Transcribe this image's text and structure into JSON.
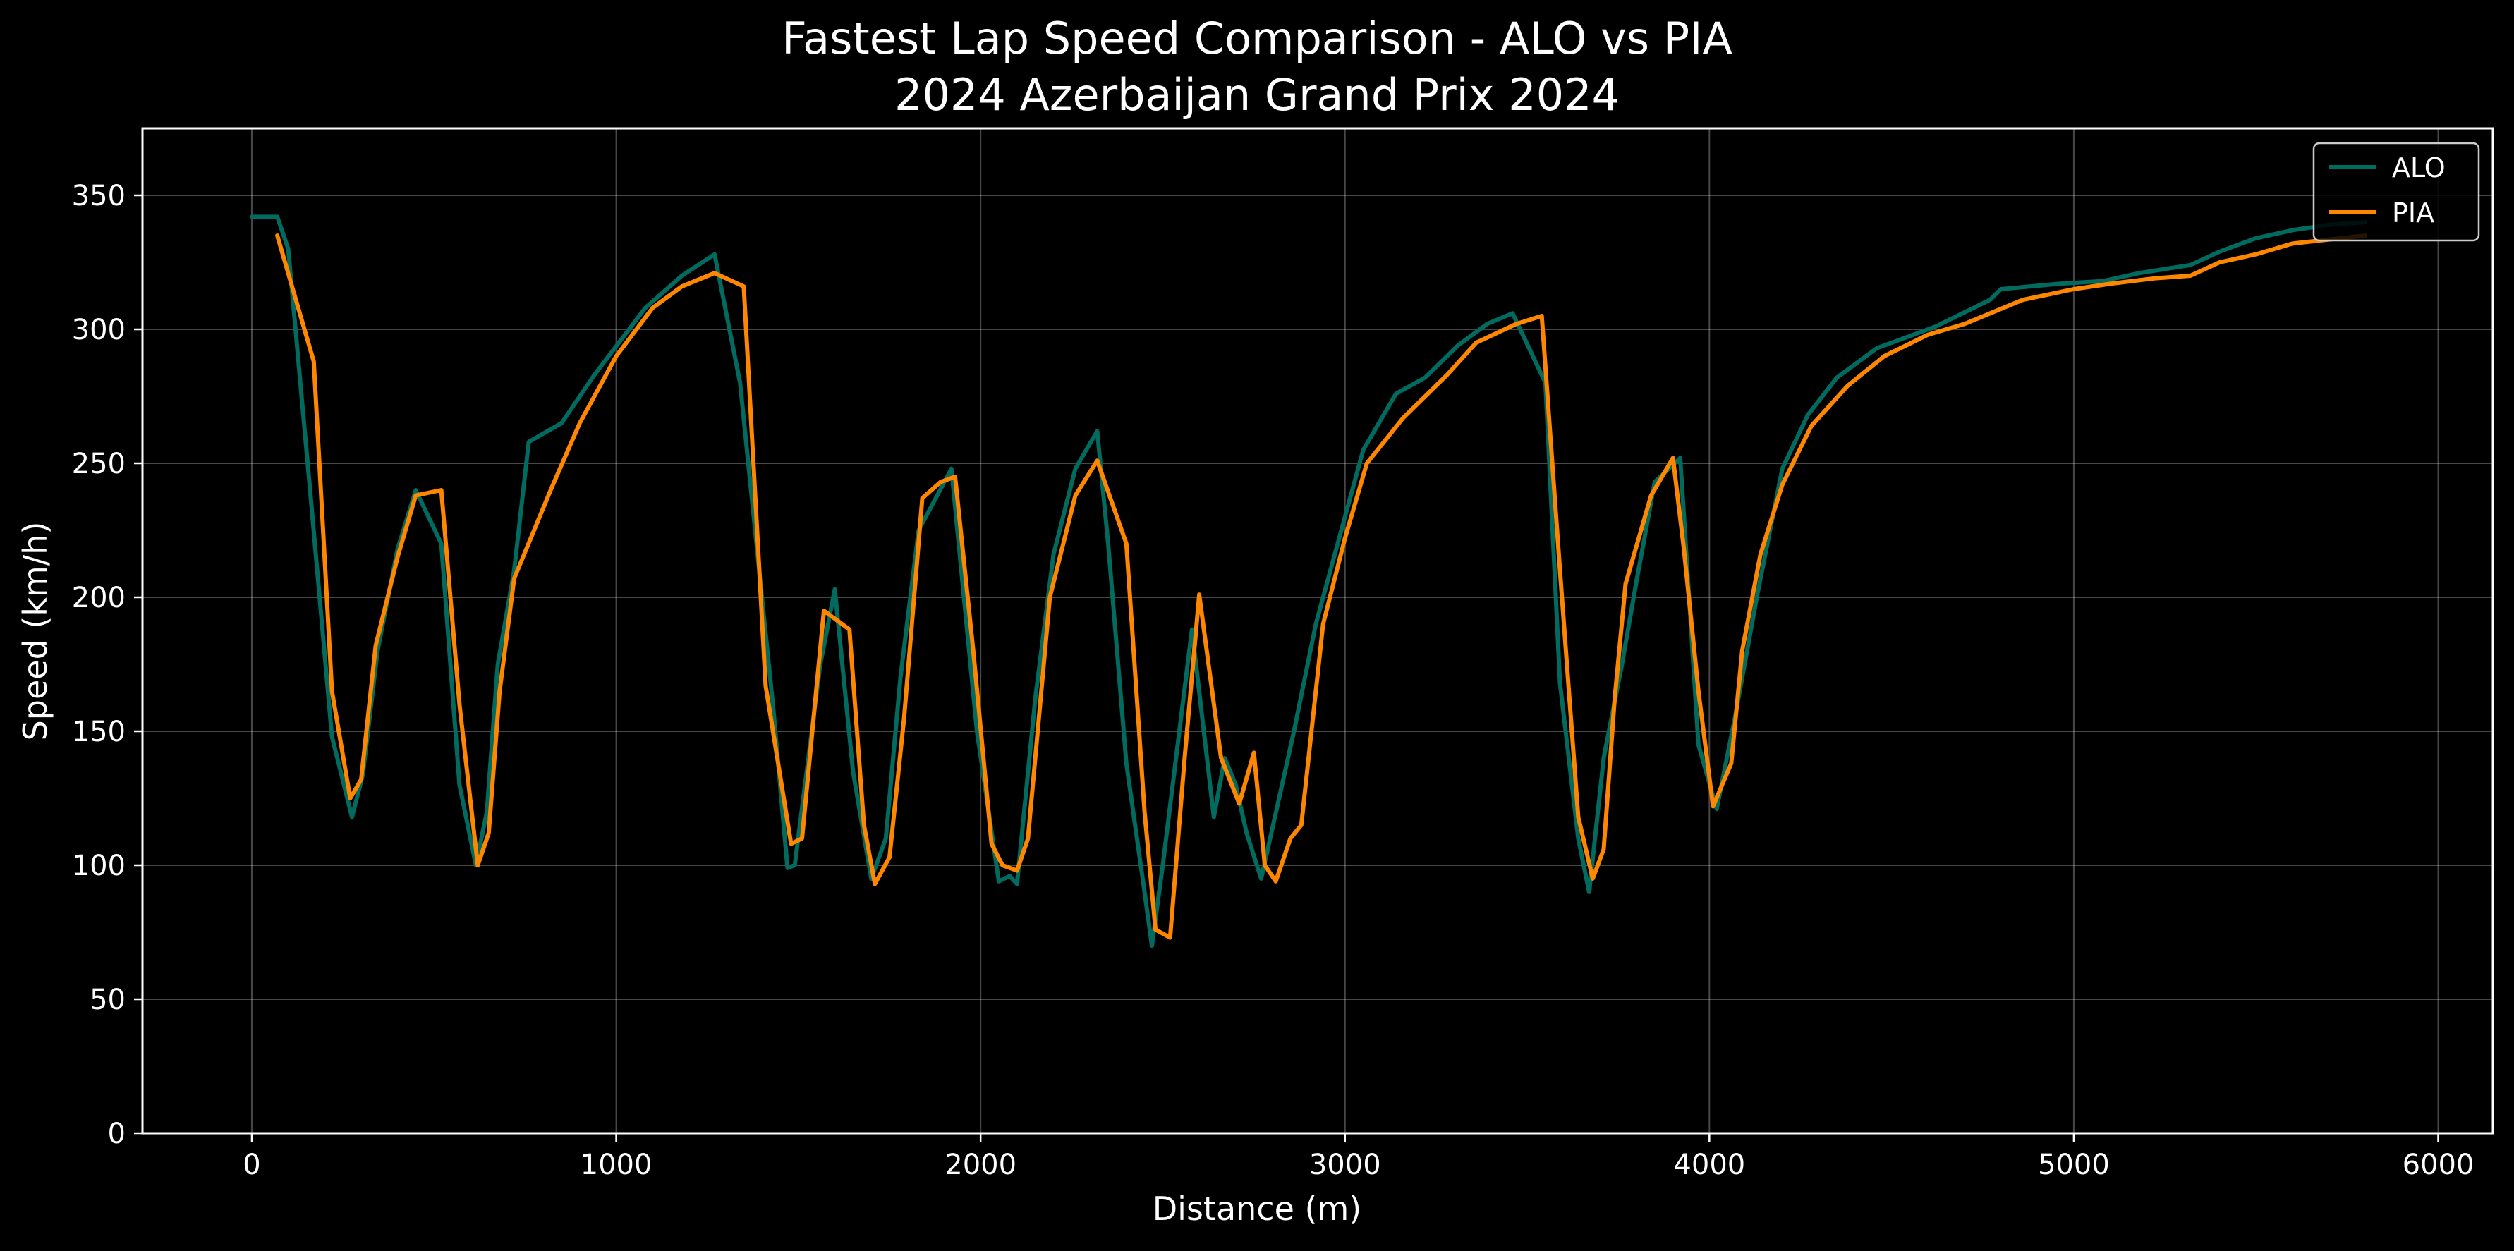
{
  "chart_data": {
    "type": "line",
    "title": "Fastest Lap Speed Comparison - ALO vs PIA",
    "subtitle": "2024 Azerbaijan Grand Prix 2024",
    "xlabel": "Distance (m)",
    "ylabel": "Speed (km/h)",
    "xlim": [
      -300,
      6150
    ],
    "ylim": [
      0,
      375
    ],
    "xticks": [
      0,
      1000,
      2000,
      3000,
      4000,
      5000,
      6000
    ],
    "yticks": [
      0,
      50,
      100,
      150,
      200,
      250,
      300,
      350
    ],
    "grid": true,
    "legend": "top-right",
    "background": "#000000",
    "series": [
      {
        "name": "ALO",
        "color": "#006b5e",
        "x": [
          0,
          70,
          100,
          160,
          220,
          275,
          305,
          345,
          400,
          450,
          520,
          570,
          615,
          645,
          675,
          720,
          760,
          850,
          940,
          1080,
          1180,
          1270,
          1340,
          1430,
          1470,
          1490,
          1560,
          1600,
          1650,
          1700,
          1740,
          1780,
          1830,
          1920,
          1990,
          2050,
          2080,
          2100,
          2150,
          2200,
          2260,
          2320,
          2350,
          2400,
          2450,
          2470,
          2500,
          2580,
          2640,
          2670,
          2700,
          2730,
          2770,
          2860,
          2920,
          3000,
          3050,
          3140,
          3220,
          3310,
          3390,
          3460,
          3550,
          3590,
          3640,
          3670,
          3710,
          3760,
          3800,
          3850,
          3920,
          3970,
          4020,
          4070,
          4130,
          4200,
          4270,
          4350,
          4460,
          4620,
          4770,
          4800,
          4960,
          5080,
          5180,
          5320,
          5400,
          5500,
          5600,
          5700,
          5800
        ],
        "values": [
          342,
          342,
          330,
          240,
          148,
          118,
          134,
          180,
          218,
          240,
          220,
          130,
          100,
          120,
          175,
          210,
          258,
          265,
          283,
          308,
          320,
          328,
          280,
          160,
          99,
          100,
          175,
          203,
          135,
          95,
          110,
          170,
          225,
          248,
          150,
          94,
          96,
          93,
          162,
          216,
          248,
          262,
          220,
          138,
          90,
          70,
          100,
          188,
          118,
          140,
          130,
          112,
          95,
          150,
          190,
          230,
          255,
          276,
          282,
          294,
          302,
          306,
          280,
          168,
          110,
          90,
          140,
          175,
          206,
          243,
          252,
          145,
          121,
          155,
          200,
          248,
          268,
          282,
          293,
          301,
          311,
          315,
          317,
          318,
          321,
          324,
          329,
          334,
          337,
          339,
          340
        ]
      },
      {
        "name": "PIA",
        "color": "#ff8700",
        "x": [
          70,
          170,
          220,
          270,
          300,
          340,
          400,
          450,
          520,
          570,
          620,
          650,
          680,
          720,
          820,
          900,
          1000,
          1100,
          1180,
          1270,
          1350,
          1410,
          1480,
          1510,
          1570,
          1640,
          1680,
          1710,
          1750,
          1790,
          1840,
          1890,
          1930,
          1980,
          2030,
          2060,
          2100,
          2130,
          2190,
          2260,
          2320,
          2400,
          2450,
          2480,
          2520,
          2560,
          2600,
          2660,
          2710,
          2750,
          2780,
          2810,
          2850,
          2880,
          2940,
          3000,
          3060,
          3160,
          3280,
          3360,
          3470,
          3540,
          3590,
          3640,
          3680,
          3710,
          3740,
          3770,
          3840,
          3900,
          3930,
          3970,
          4010,
          4060,
          4090,
          4140,
          4200,
          4280,
          4380,
          4480,
          4600,
          4700,
          4860,
          5000,
          5100,
          5220,
          5320,
          5400,
          5500,
          5600,
          5800
        ],
        "values": [
          335,
          288,
          165,
          125,
          132,
          182,
          215,
          238,
          240,
          160,
          100,
          112,
          165,
          207,
          240,
          265,
          290,
          308,
          316,
          321,
          316,
          167,
          108,
          110,
          195,
          188,
          115,
          93,
          103,
          155,
          237,
          243,
          245,
          180,
          108,
          100,
          98,
          110,
          200,
          238,
          251,
          220,
          120,
          76,
          73,
          140,
          201,
          140,
          123,
          142,
          100,
          94,
          110,
          115,
          190,
          222,
          250,
          267,
          283,
          295,
          302,
          305,
          210,
          118,
          95,
          106,
          162,
          205,
          238,
          252,
          218,
          165,
          122,
          138,
          180,
          216,
          242,
          264,
          279,
          290,
          298,
          302,
          311,
          315,
          317,
          319,
          320,
          325,
          328,
          332,
          335
        ]
      }
    ]
  }
}
